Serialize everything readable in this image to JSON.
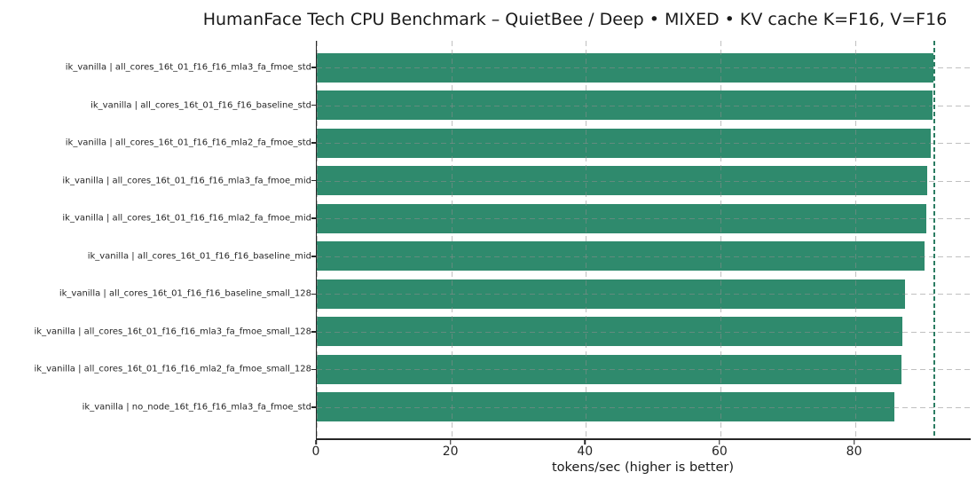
{
  "chart_data": {
    "type": "bar",
    "orientation": "horizontal",
    "title": "HumanFace Tech CPU Benchmark – QuietBee / Deep • MIXED • KV cache K=F16, V=F16",
    "xlabel": "tokens/sec (higher is better)",
    "ylabel": "",
    "categories": [
      "ik_vanilla | all_cores_16t_01_f16_f16_mla3_fa_fmoe_std",
      "ik_vanilla | all_cores_16t_01_f16_f16_baseline_std",
      "ik_vanilla | all_cores_16t_01_f16_f16_mla2_fa_fmoe_std",
      "ik_vanilla | all_cores_16t_01_f16_f16_mla3_fa_fmoe_mid",
      "ik_vanilla | all_cores_16t_01_f16_f16_mla2_fa_fmoe_mid",
      "ik_vanilla | all_cores_16t_01_f16_f16_baseline_mid",
      "ik_vanilla | all_cores_16t_01_f16_f16_baseline_small_128",
      "ik_vanilla | all_cores_16t_01_f16_f16_mla3_fa_fmoe_small_128",
      "ik_vanilla | all_cores_16t_01_f16_f16_mla2_fa_fmoe_small_128",
      "ik_vanilla | no_node_16t_f16_f16_mla3_fa_fmoe_std"
    ],
    "values": [
      91.6,
      91.5,
      91.2,
      90.7,
      90.6,
      90.4,
      87.4,
      87.0,
      86.9,
      85.8
    ],
    "xticks": [
      0,
      20,
      40,
      60,
      80
    ],
    "xlim": [
      0,
      97.2
    ],
    "grid": true,
    "grid_style": "dashed",
    "legend": false,
    "bar_color": "#2f8a6d",
    "reference_line": {
      "value": 91.6,
      "style": "dashed",
      "color": "#2b7c62"
    }
  }
}
